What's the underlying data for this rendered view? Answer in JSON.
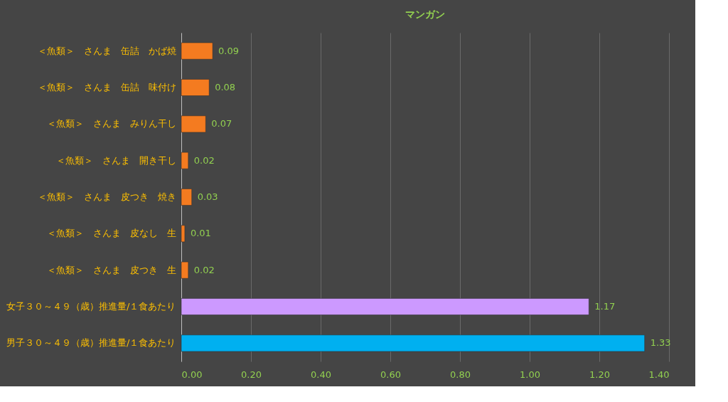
{
  "chart_data": {
    "type": "bar",
    "orientation": "horizontal",
    "title": "マンガン",
    "categories": [
      "＜魚類＞　さんま　缶詰　かば焼",
      "＜魚類＞　さんま　缶詰　味付け",
      "＜魚類＞　さんま　みりん干し",
      "＜魚類＞　さんま　開き干し",
      "＜魚類＞　さんま　皮つき　焼き",
      "＜魚類＞　さんま　皮なし　生",
      "＜魚類＞　さんま　皮つき　生",
      "女子３０～４９（歳）推進量/１食あたり",
      "男子３０～４９（歳）推進量/１食あたり"
    ],
    "values": [
      0.09,
      0.08,
      0.07,
      0.02,
      0.03,
      0.01,
      0.02,
      1.17,
      1.33
    ],
    "colors": [
      "#f47b20",
      "#f47b20",
      "#f47b20",
      "#f47b20",
      "#f47b20",
      "#f47b20",
      "#f47b20",
      "#cc99ff",
      "#00b0f0"
    ],
    "xlim": [
      0,
      1.4
    ],
    "xticks": [
      {
        "value": 0,
        "label": "0.00"
      },
      {
        "value": 0.2,
        "label": "0.20"
      },
      {
        "value": 0.4,
        "label": "0.40"
      },
      {
        "value": 0.6,
        "label": "0.60"
      },
      {
        "value": 0.8,
        "label": "0.80"
      },
      {
        "value": 1.0,
        "label": "1.00"
      },
      {
        "value": 1.2,
        "label": "1.20"
      },
      {
        "value": 1.4,
        "label": "1.40"
      }
    ],
    "grid": "x",
    "data_labels": true
  }
}
